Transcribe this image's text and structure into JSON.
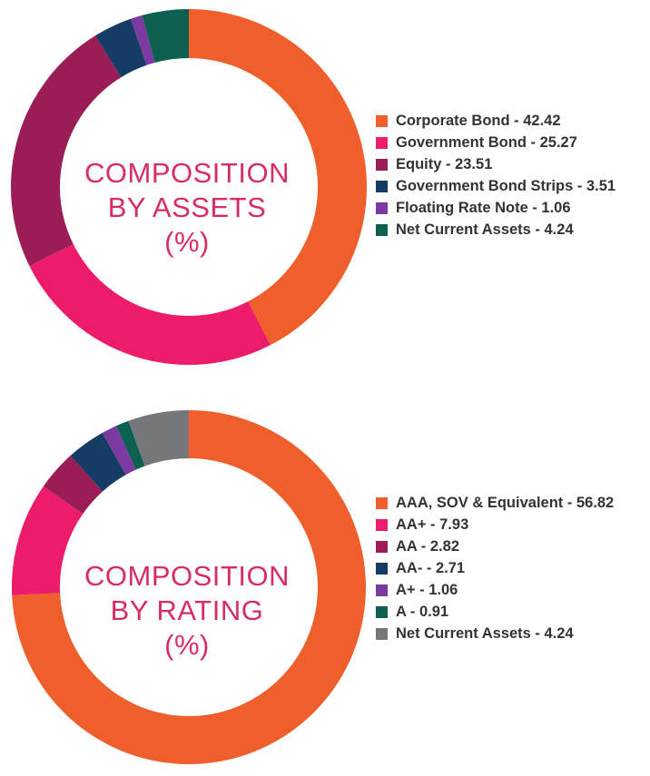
{
  "chart_data": [
    {
      "type": "pie",
      "title": [
        "COMPOSITION",
        "BY ASSETS",
        "(%)"
      ],
      "categories": [
        "Corporate Bond",
        "Government Bond",
        "Equity",
        "Government Bond Strips",
        "Floating Rate Note",
        "Net Current Assets"
      ],
      "values": [
        42.42,
        25.27,
        23.51,
        3.51,
        1.06,
        4.24
      ],
      "legend_labels": [
        "Corporate Bond - 42.42",
        "Government Bond - 25.27",
        "Equity - 23.51",
        "Government Bond Strips - 3.51",
        "Floating Rate Note - 1.06",
        "Net Current Assets - 4.24"
      ],
      "colors": [
        "#ef5f2b",
        "#ec1b6b",
        "#9b1d55",
        "#163b64",
        "#7b3aa0",
        "#0d5f4f"
      ],
      "legend_placement": "right"
    },
    {
      "type": "pie",
      "title": [
        "COMPOSITION",
        "BY RATING",
        "(%)"
      ],
      "categories": [
        "AAA, SOV & Equivalent",
        "AA+",
        "AA",
        "AA-",
        "A+",
        "A",
        "Net Current Assets"
      ],
      "values": [
        56.82,
        7.93,
        2.82,
        2.71,
        1.06,
        0.91,
        4.24
      ],
      "legend_labels": [
        "AAA, SOV & Equivalent - 56.82",
        "AA+ - 7.93",
        "AA - 2.82",
        "AA- - 2.71",
        "A+ - 1.06",
        "A - 0.91",
        "Net Current Assets - 4.24"
      ],
      "colors": [
        "#ef5f2b",
        "#ec1b6b",
        "#9b1d55",
        "#163b64",
        "#7b3aa0",
        "#0d5f4f",
        "#75777b"
      ],
      "legend_placement": "right"
    }
  ]
}
